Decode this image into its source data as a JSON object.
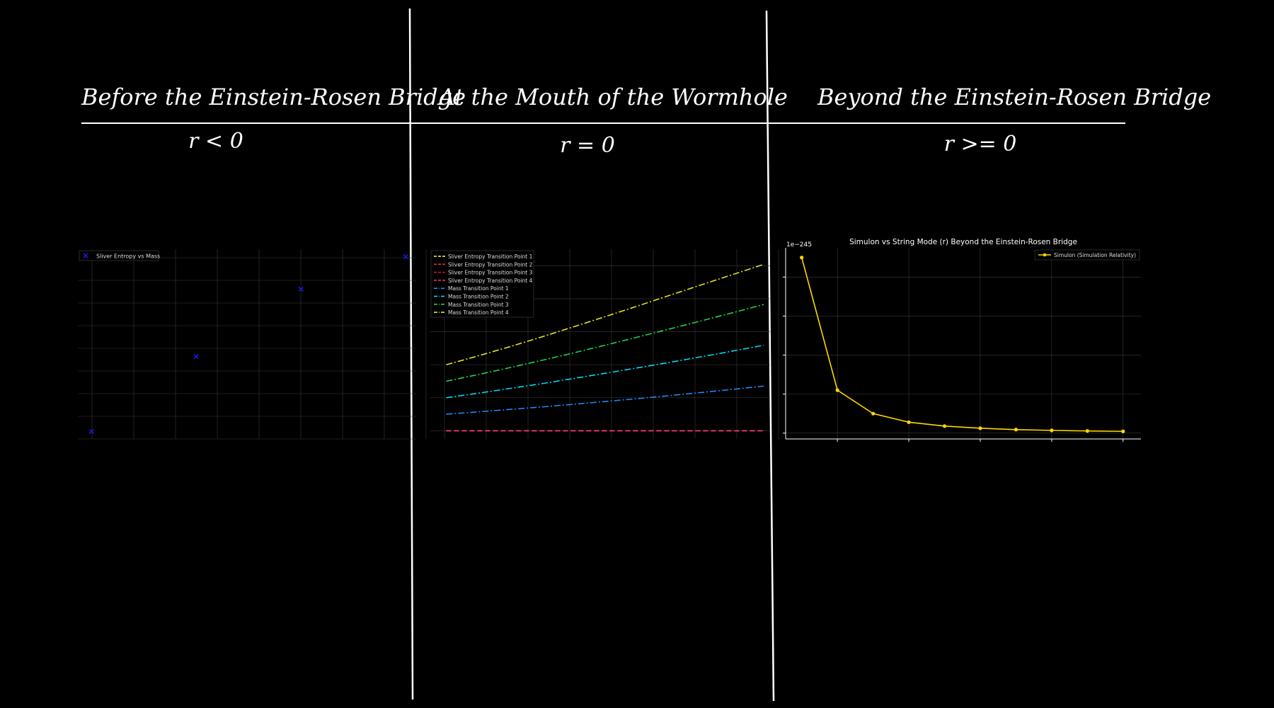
{
  "headings": {
    "before": "Before the Einstein-Rosen Bridge",
    "mouth": "At the Mouth of the Wormhole",
    "beyond": "Beyond the Einstein-Rosen Bridge"
  },
  "conditions": {
    "before": "r < 0",
    "mouth": "r = 0",
    "beyond": "r >= 0"
  },
  "colors": {
    "background": "#000000",
    "divider": "#ffffff",
    "grid": "#3a3a3a",
    "scatter": "#1a1aff",
    "simulon": "#ffd700"
  },
  "chart_data": [
    {
      "type": "scatter",
      "legend": [
        "Sliver Entropy vs Mass"
      ],
      "legend_position": "top-left",
      "grid": true,
      "axes_visible": false,
      "points": [
        {
          "x": 1,
          "y": 1
        },
        {
          "x": 2,
          "y": 4
        },
        {
          "x": 3,
          "y": 6.7
        },
        {
          "x": 4,
          "y": 8
        }
      ],
      "xlim": [
        0.87,
        4.1
      ],
      "ylim": [
        0.7,
        8.3
      ]
    },
    {
      "type": "line",
      "legend_position": "top-left",
      "grid": true,
      "axes_visible": false,
      "x": [
        0,
        1,
        2,
        3,
        4,
        5,
        6,
        7,
        8,
        9,
        10
      ],
      "series": [
        {
          "name": "Sliver Entropy Transition Point 1",
          "color": "#ffff33",
          "dash": "dashed",
          "values": [
            0,
            0,
            0,
            0,
            0,
            0,
            0,
            0,
            0,
            0,
            0
          ]
        },
        {
          "name": "Sliver Entropy Transition Point 2",
          "color": "#ff2a2a",
          "dash": "dashed",
          "values": [
            0,
            0,
            0,
            0,
            0,
            0,
            0,
            0,
            0,
            0,
            0
          ]
        },
        {
          "name": "Sliver Entropy Transition Point 3",
          "color": "#cc1133",
          "dash": "dashed",
          "values": [
            0,
            0,
            0,
            0,
            0,
            0,
            0,
            0,
            0,
            0,
            0
          ]
        },
        {
          "name": "Sliver Entropy Transition Point 4",
          "color": "#ff3377",
          "dash": "dashed",
          "values": [
            0,
            0,
            0,
            0,
            0,
            0,
            0,
            0,
            0,
            0,
            0
          ]
        },
        {
          "name": "Mass Transition Point 1",
          "color": "#1e90ff",
          "dash": "dashdot",
          "values": [
            1,
            1.14,
            1.29,
            1.44,
            1.6,
            1.77,
            1.94,
            2.12,
            2.31,
            2.5,
            2.7
          ]
        },
        {
          "name": "Mass Transition Point 2",
          "color": "#00e5ff",
          "dash": "dashdot",
          "values": [
            2,
            2.27,
            2.56,
            2.85,
            3.16,
            3.48,
            3.8,
            4.13,
            4.47,
            4.82,
            5.18
          ]
        },
        {
          "name": "Mass Transition Point 3",
          "color": "#22dd55",
          "dash": "dashdot",
          "values": [
            3,
            3.4,
            3.82,
            4.26,
            4.71,
            5.18,
            5.66,
            6.15,
            6.64,
            7.14,
            7.65
          ]
        },
        {
          "name": "Mass Transition Point 4",
          "color": "#eeee22",
          "dash": "dashdot",
          "values": [
            4,
            4.53,
            5.09,
            5.68,
            6.29,
            6.91,
            7.54,
            8.18,
            8.82,
            9.45,
            10.08
          ]
        }
      ],
      "xlim": [
        -0.5,
        10.2
      ],
      "ylim": [
        -0.5,
        11
      ]
    },
    {
      "type": "line",
      "title": "Simulon vs String Mode (r) Beyond the Einstein-Rosen Bridge",
      "offset_text": "1e−245",
      "legend_position": "top-right",
      "grid": true,
      "series": [
        {
          "name": "Simulon (Simulation Relativity)",
          "color": "#ffd700",
          "marker": "circle",
          "x": [
            1,
            2,
            3,
            4,
            5,
            6,
            7,
            8,
            9,
            10
          ],
          "values": [
            4.5,
            1.1,
            0.5,
            0.28,
            0.18,
            0.125,
            0.09,
            0.07,
            0.055,
            0.045
          ]
        }
      ],
      "xlim": [
        0.55,
        10.5
      ],
      "ylim": [
        -0.15,
        4.75
      ],
      "ytick_count": 5
    }
  ]
}
